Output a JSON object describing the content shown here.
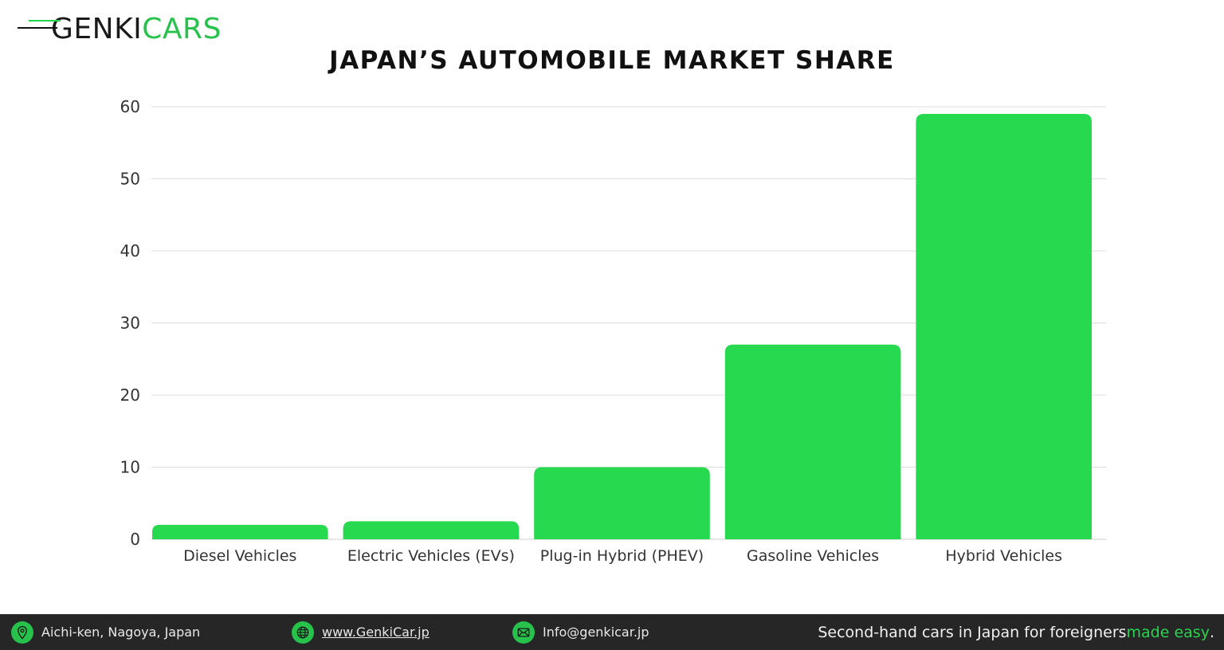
{
  "brand": {
    "logo_part1": "GENKI",
    "logo_part2": "CARS",
    "accent_color": "#27d44e",
    "dark_color": "#1a1a1a"
  },
  "chart_data": {
    "type": "bar",
    "title": "JAPAN’S AUTOMOBILE MARKET SHARE",
    "xlabel": "",
    "ylabel": "",
    "categories": [
      "Diesel Vehicles",
      "Electric Vehicles (EVs)",
      "Plug-in Hybrid (PHEV)",
      "Gasoline Vehicles",
      "Hybrid Vehicles"
    ],
    "values": [
      2,
      2.5,
      10,
      27,
      59
    ],
    "ylim": [
      0,
      60
    ],
    "yticks": [
      "0",
      "10",
      "20",
      "30",
      "40",
      "50",
      "60"
    ],
    "grid": true,
    "bar_color": "#27d94f"
  },
  "footer": {
    "address": {
      "icon": "location-pin-icon",
      "text": "Aichi-ken, Nagoya, Japan"
    },
    "website": {
      "icon": "globe-icon",
      "text": "www.GenkiCar.jp"
    },
    "email": {
      "icon": "envelope-icon",
      "text": "Info@genkicar.jp"
    },
    "tagline": {
      "main": "Second-hand cars in Japan for foreigners ",
      "accent": "made easy",
      "end": "."
    }
  }
}
